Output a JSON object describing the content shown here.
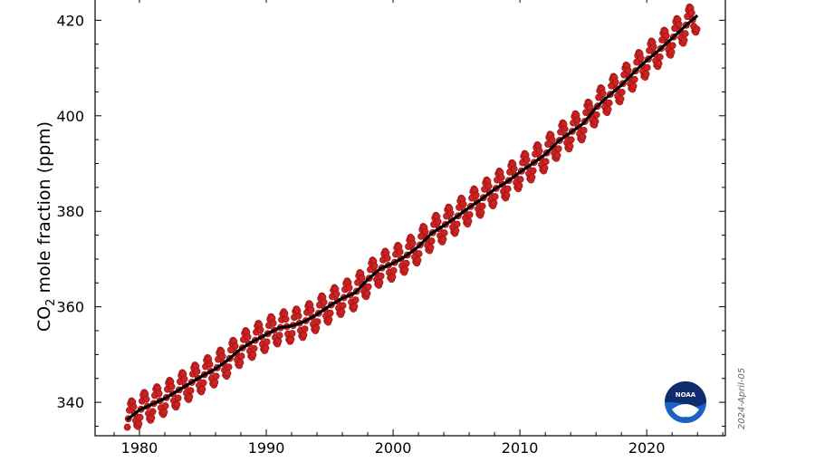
{
  "chart_data": {
    "type": "scatter",
    "title": "",
    "xlabel": "",
    "ylabel_main": "CO",
    "ylabel_sub": "2",
    "ylabel_rest": " mole fraction (ppm)",
    "xlim": [
      1976.5,
      2026.2
    ],
    "ylim": [
      333.0,
      425.0
    ],
    "x_ticks": [
      1980,
      1990,
      2000,
      2010,
      2020
    ],
    "y_ticks": [
      340,
      360,
      380,
      400,
      420
    ],
    "x_tick_labels": [
      "1980",
      "1990",
      "2000",
      "2010",
      "2020"
    ],
    "y_tick_labels": [
      "340",
      "360",
      "380",
      "400",
      "420"
    ],
    "x_range": [
      1979.0,
      2024.0
    ],
    "date_stamp": "2024-April-05",
    "logo_text": "NOAA",
    "colors": {
      "monthly_points": "#cc2222",
      "trend_line": "#000000",
      "logo_blue": "#1b62c4",
      "logo_navy": "#0d2d6e"
    },
    "series": [
      {
        "kind": "monthly_mean",
        "years": [
          1979,
          1980,
          1981,
          1982,
          1983,
          1984,
          1985,
          1986,
          1987,
          1988,
          1989,
          1990,
          1991,
          1992,
          1993,
          1994,
          1995,
          1996,
          1997,
          1998,
          1999,
          2000,
          2001,
          2002,
          2003,
          2004,
          2005,
          2006,
          2007,
          2008,
          2009,
          2010,
          2011,
          2012,
          2013,
          2014,
          2015,
          2016,
          2017,
          2018,
          2019,
          2020,
          2021,
          2022,
          2023,
          2024
        ],
        "trend": [
          336.3,
          338.4,
          339.6,
          340.8,
          342.4,
          344.0,
          345.6,
          347.0,
          348.9,
          351.2,
          352.8,
          354.2,
          355.6,
          356.0,
          356.9,
          358.4,
          360.2,
          361.8,
          362.9,
          365.7,
          368.0,
          369.1,
          370.6,
          372.6,
          375.3,
          377.0,
          378.8,
          380.8,
          382.6,
          384.6,
          386.2,
          388.2,
          390.0,
          391.9,
          394.6,
          396.5,
          398.4,
          401.7,
          404.2,
          406.4,
          409.1,
          411.6,
          413.8,
          416.2,
          418.7,
          421.0
        ],
        "seasonal_amplitude": 3.2
      }
    ]
  }
}
